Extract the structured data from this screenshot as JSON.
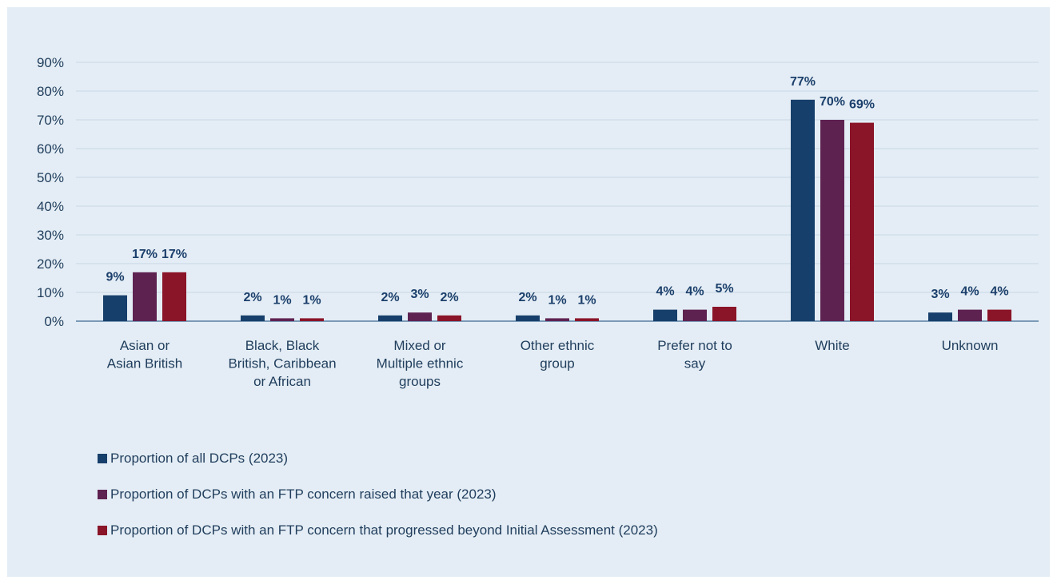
{
  "colors": {
    "background": "#e4edf5",
    "axis": "#3f6a92",
    "grid": "#c7d7e5",
    "text": "#1f3d5c",
    "label": "#1b3f6b"
  },
  "chart_data": {
    "type": "bar",
    "title": "",
    "xlabel": "",
    "ylabel": "",
    "ylim": [
      0,
      90
    ],
    "y_ticks": [
      0,
      10,
      20,
      30,
      40,
      50,
      60,
      70,
      80,
      90
    ],
    "y_tick_labels": [
      "0%",
      "10%",
      "20%",
      "30%",
      "40%",
      "50%",
      "60%",
      "70%",
      "80%",
      "90%"
    ],
    "grid": true,
    "legend_position": "bottom-left",
    "categories": [
      [
        "Asian or",
        "Asian British"
      ],
      [
        "Black, Black",
        "British, Caribbean",
        "or African"
      ],
      [
        "Mixed or",
        "Multiple ethnic",
        "groups"
      ],
      [
        "Other ethnic",
        "group"
      ],
      [
        "Prefer not to",
        "say"
      ],
      [
        "White"
      ],
      [
        "Unknown"
      ]
    ],
    "series": [
      {
        "name": "Proportion of all DCPs (2023)",
        "color": "#173f6b",
        "values": [
          9,
          2,
          2,
          2,
          4,
          77,
          3
        ],
        "labels": [
          "9%",
          "2%",
          "2%",
          "2%",
          "4%",
          "77%",
          "3%"
        ]
      },
      {
        "name": "Proportion of DCPs with an FTP concern raised that year (2023)",
        "color": "#5e2251",
        "values": [
          17,
          1,
          3,
          1,
          4,
          70,
          4
        ],
        "labels": [
          "17%",
          "1%",
          "3%",
          "1%",
          "4%",
          "70%",
          "4%"
        ]
      },
      {
        "name": "Proportion of DCPs with an FTP concern that progressed beyond Initial Assessment (2023)",
        "color": "#8a1428",
        "values": [
          17,
          1,
          2,
          1,
          5,
          69,
          4
        ],
        "labels": [
          "17%",
          "1%",
          "2%",
          "1%",
          "5%",
          "69%",
          "4%"
        ]
      }
    ]
  }
}
